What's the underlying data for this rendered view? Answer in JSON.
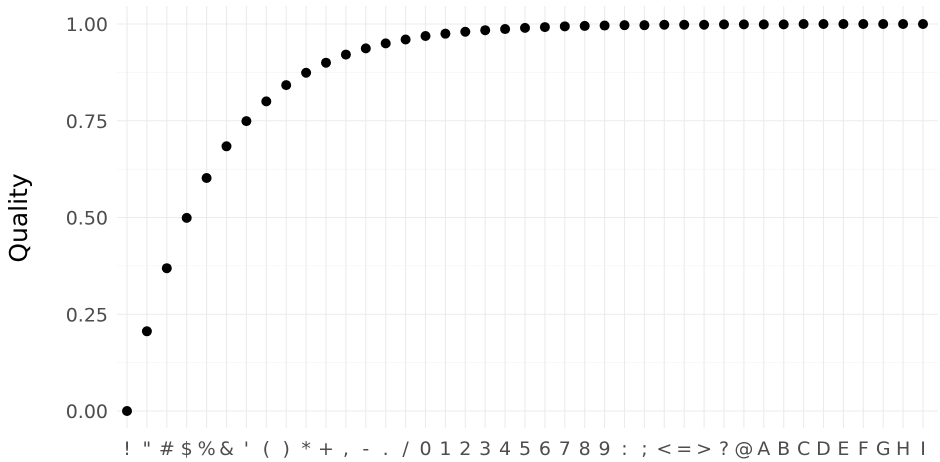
{
  "chart_data": {
    "type": "scatter",
    "xlabel": "",
    "ylabel": "Quality",
    "ylim": [
      -0.05,
      1.04
    ],
    "grid": true,
    "point_color": "#000000",
    "y_ticks": [
      0,
      0.25,
      0.5,
      0.75,
      1
    ],
    "y_tick_labels": [
      "0.00",
      "0.25",
      "0.50",
      "0.75",
      "1.00"
    ],
    "categories": [
      "!",
      "\"",
      "#",
      "$",
      "%",
      "&",
      "'",
      "(",
      ")",
      "*",
      "+",
      ",",
      "-",
      ".",
      "/",
      "0",
      "1",
      "2",
      "3",
      "4",
      "5",
      "6",
      "7",
      "8",
      "9",
      ":",
      ";",
      "<",
      "=",
      ">",
      "?",
      "@",
      "A",
      "B",
      "C",
      "D",
      "E",
      "F",
      "G",
      "H",
      "I"
    ],
    "values": [
      0.0,
      0.206,
      0.369,
      0.499,
      0.602,
      0.684,
      0.749,
      0.8,
      0.842,
      0.874,
      0.9,
      0.921,
      0.937,
      0.95,
      0.96,
      0.969,
      0.975,
      0.98,
      0.984,
      0.987,
      0.99,
      0.992,
      0.994,
      0.995,
      0.996,
      0.997,
      0.997,
      0.998,
      0.998,
      0.998,
      0.999,
      0.999,
      0.999,
      0.999,
      1.0,
      1.0,
      1.0,
      1.0,
      1.0,
      1.0,
      1.0
    ]
  }
}
